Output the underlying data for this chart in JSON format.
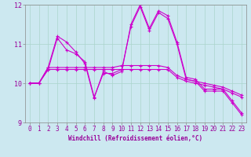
{
  "title": "",
  "xlabel": "Windchill (Refroidissement éolien,°C)",
  "ylabel": "",
  "bg_color": "#cce8f0",
  "grid_color": "#aad4cc",
  "line_color": "#cc00cc",
  "xlim": [
    -0.5,
    23.5
  ],
  "ylim": [
    9.0,
    12.0
  ],
  "yticks": [
    9,
    10,
    11,
    12
  ],
  "xticks": [
    0,
    1,
    2,
    3,
    4,
    5,
    6,
    7,
    8,
    9,
    10,
    11,
    12,
    13,
    14,
    15,
    16,
    17,
    18,
    19,
    20,
    21,
    22,
    23
  ],
  "series": [
    [
      10.0,
      10.0,
      10.4,
      11.2,
      11.05,
      10.8,
      10.5,
      9.62,
      10.3,
      10.2,
      10.3,
      11.5,
      12.0,
      11.4,
      11.85,
      11.72,
      11.05,
      10.15,
      10.1,
      9.85,
      9.85,
      9.85,
      9.55,
      9.25
    ],
    [
      10.0,
      10.0,
      10.35,
      11.15,
      10.85,
      10.75,
      10.55,
      9.65,
      10.25,
      10.25,
      10.35,
      11.45,
      11.95,
      11.35,
      11.8,
      11.65,
      11.0,
      10.1,
      10.05,
      9.8,
      9.8,
      9.8,
      9.5,
      9.2
    ],
    [
      10.0,
      10.0,
      10.35,
      10.35,
      10.35,
      10.35,
      10.35,
      10.35,
      10.35,
      10.35,
      10.35,
      10.35,
      10.35,
      10.35,
      10.35,
      10.35,
      10.15,
      10.05,
      10.0,
      9.95,
      9.9,
      9.85,
      9.75,
      9.65
    ],
    [
      10.0,
      10.0,
      10.4,
      10.4,
      10.4,
      10.4,
      10.4,
      10.4,
      10.4,
      10.4,
      10.45,
      10.45,
      10.45,
      10.45,
      10.45,
      10.4,
      10.2,
      10.1,
      10.05,
      10.0,
      9.95,
      9.9,
      9.8,
      9.7
    ]
  ],
  "tick_fontsize": 5.5,
  "xlabel_fontsize": 5.5,
  "linewidth": 0.8,
  "markersize": 3.0
}
